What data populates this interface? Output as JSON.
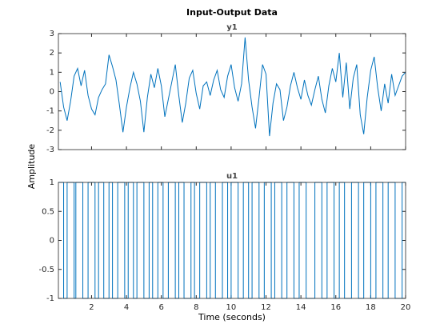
{
  "figure": {
    "title": "Input-Output Data",
    "ylabel": "Amplitude",
    "xlabel": "Time (seconds)"
  },
  "chart_data": [
    {
      "type": "line",
      "title": "y1",
      "color": "#0072bd",
      "xlim": [
        0.1,
        20
      ],
      "xticks": [
        2,
        4,
        6,
        8,
        10,
        12,
        14,
        16,
        18,
        20
      ],
      "show_xtick_labels": false,
      "ylim": [
        -3,
        3
      ],
      "yticks": [
        -3,
        -2,
        -1,
        0,
        1,
        2,
        3
      ],
      "series": [
        {
          "name": "y1",
          "color": "#0072bd",
          "x": [
            0.2,
            0.4,
            0.6,
            0.8,
            1.0,
            1.2,
            1.4,
            1.6,
            1.8,
            2.0,
            2.2,
            2.4,
            2.6,
            2.8,
            3.0,
            3.2,
            3.4,
            3.6,
            3.8,
            4.0,
            4.2,
            4.4,
            4.6,
            4.8,
            5.0,
            5.2,
            5.4,
            5.6,
            5.8,
            6.0,
            6.2,
            6.4,
            6.6,
            6.8,
            7.0,
            7.2,
            7.4,
            7.6,
            7.8,
            8.0,
            8.2,
            8.4,
            8.6,
            8.8,
            9.0,
            9.2,
            9.4,
            9.6,
            9.8,
            10.0,
            10.2,
            10.4,
            10.6,
            10.8,
            11.0,
            11.2,
            11.4,
            11.6,
            11.8,
            12.0,
            12.2,
            12.4,
            12.6,
            12.8,
            13.0,
            13.2,
            13.4,
            13.6,
            13.8,
            14.0,
            14.2,
            14.4,
            14.6,
            14.8,
            15.0,
            15.2,
            15.4,
            15.6,
            15.8,
            16.0,
            16.2,
            16.4,
            16.6,
            16.8,
            17.0,
            17.2,
            17.4,
            17.6,
            17.8,
            18.0,
            18.2,
            18.4,
            18.6,
            18.8,
            19.0,
            19.2,
            19.4,
            19.6,
            19.8,
            20.0
          ],
          "values": [
            0.5,
            -0.8,
            -1.5,
            -0.5,
            0.8,
            1.2,
            0.3,
            1.1,
            -0.2,
            -0.9,
            -1.2,
            -0.3,
            0.1,
            0.4,
            1.9,
            1.3,
            0.6,
            -0.7,
            -2.1,
            -0.8,
            0.2,
            1.0,
            0.4,
            -0.5,
            -2.1,
            -0.3,
            0.9,
            0.2,
            1.2,
            0.3,
            -1.3,
            -0.4,
            0.5,
            1.4,
            -0.2,
            -1.6,
            -0.6,
            0.7,
            1.1,
            -0.1,
            -0.9,
            0.3,
            0.5,
            -0.2,
            0.6,
            1.1,
            0.1,
            -0.3,
            0.8,
            1.4,
            0.2,
            -0.5,
            0.4,
            2.8,
            0.6,
            -0.8,
            -1.9,
            -0.3,
            1.4,
            0.9,
            -2.3,
            -0.6,
            0.4,
            0.1,
            -1.5,
            -0.8,
            0.3,
            1.0,
            0.2,
            -0.4,
            0.6,
            -0.2,
            -0.7,
            0.1,
            0.8,
            -0.4,
            -1.1,
            0.3,
            1.2,
            0.5,
            2.0,
            -0.3,
            1.5,
            -0.9,
            0.7,
            1.4,
            -1.2,
            -2.2,
            -0.3,
            1.1,
            1.8,
            0.2,
            -1.0,
            0.4,
            -0.6,
            0.9,
            -0.2,
            0.3,
            0.8,
            1.0
          ]
        }
      ]
    },
    {
      "type": "stairs",
      "title": "u1",
      "color": "#0072bd",
      "xlim": [
        0.1,
        20
      ],
      "xticks": [
        2,
        4,
        6,
        8,
        10,
        12,
        14,
        16,
        18,
        20
      ],
      "show_xtick_labels": true,
      "ylim": [
        -1,
        1
      ],
      "yticks": [
        -1,
        -0.5,
        0,
        0.5,
        1
      ],
      "series": [
        {
          "name": "u1",
          "color": "#0072bd",
          "x": [
            0.1,
            0.4,
            0.6,
            1.0,
            1.1,
            1.5,
            1.8,
            2.2,
            2.4,
            2.7,
            3.0,
            3.2,
            3.5,
            3.9,
            4.1,
            4.4,
            4.6,
            5.0,
            5.3,
            5.5,
            5.8,
            6.1,
            6.4,
            6.8,
            7.0,
            7.3,
            7.7,
            7.9,
            8.2,
            8.6,
            8.8,
            9.1,
            9.5,
            9.8,
            10.0,
            10.4,
            10.7,
            11.0,
            11.2,
            11.6,
            11.9,
            12.3,
            12.5,
            12.9,
            13.2,
            13.6,
            13.9,
            14.3,
            14.8,
            15.2,
            15.5,
            15.9,
            16.2,
            16.5,
            16.9,
            17.3,
            17.6,
            18.0,
            18.3,
            18.7,
            19.0,
            19.4,
            19.8
          ],
          "values": [
            1,
            -1,
            1,
            -1,
            1,
            -1,
            1,
            -1,
            1,
            -1,
            1,
            -1,
            1,
            -1,
            1,
            -1,
            1,
            -1,
            1,
            -1,
            1,
            -1,
            1,
            -1,
            1,
            -1,
            1,
            -1,
            1,
            -1,
            1,
            -1,
            1,
            -1,
            1,
            -1,
            1,
            -1,
            1,
            -1,
            1,
            -1,
            1,
            -1,
            1,
            -1,
            1,
            -1,
            1,
            -1,
            1,
            -1,
            1,
            -1,
            1,
            -1,
            1,
            -1,
            1,
            -1,
            1,
            -1,
            1
          ]
        }
      ]
    }
  ]
}
